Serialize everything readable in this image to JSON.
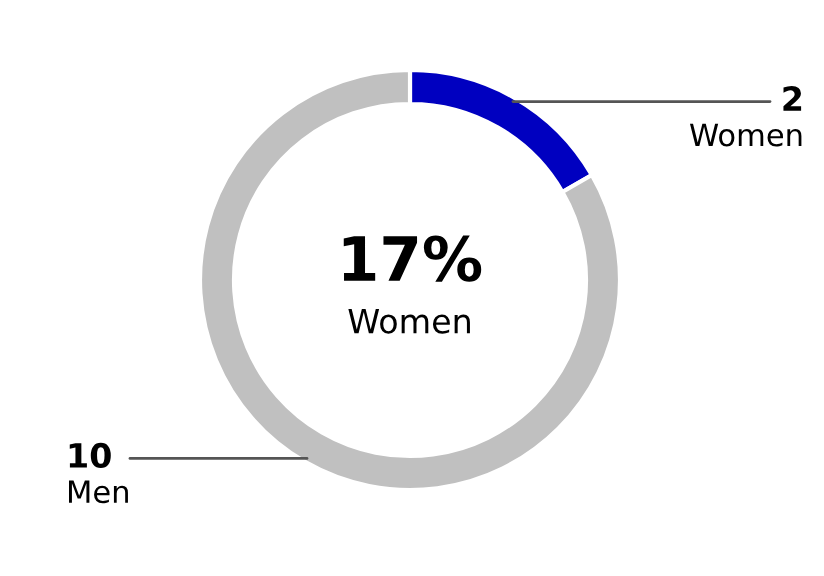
{
  "chart_data": {
    "type": "donut",
    "categories": [
      "Women",
      "Men"
    ],
    "values": [
      2,
      10
    ],
    "colors": [
      "#0000c0",
      "#c0c0c0"
    ],
    "data_labels": true,
    "annotations": [
      "17%",
      "Women"
    ]
  }
}
